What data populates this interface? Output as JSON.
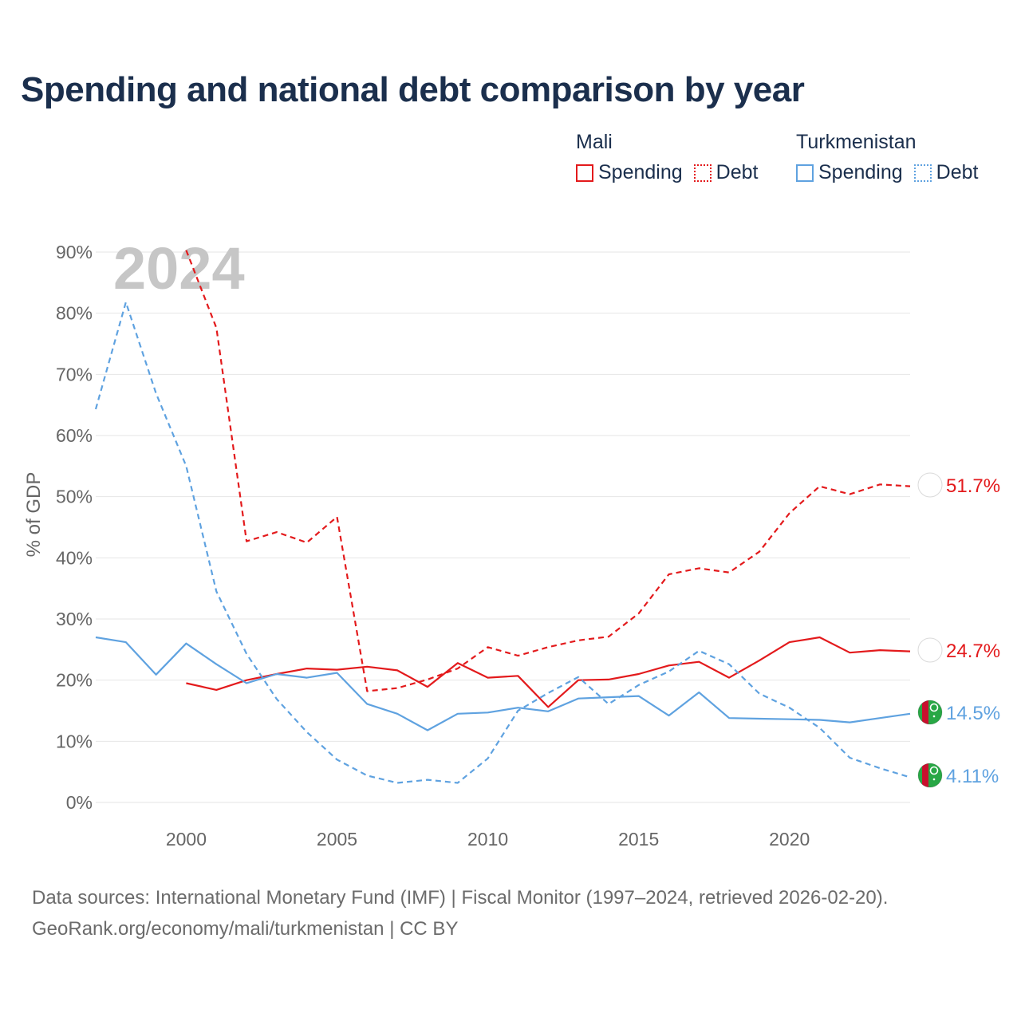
{
  "title": "Spending and national debt comparison by year",
  "legend": {
    "mali": {
      "country": "Mali",
      "spending": "Spending",
      "debt": "Debt"
    },
    "turkmenistan": {
      "country": "Turkmenistan",
      "spending": "Spending",
      "debt": "Debt"
    }
  },
  "colors": {
    "mali": "#e31a1c",
    "turkmenistan": "#5fa2e0",
    "grid": "#e6e6e6",
    "axis_text": "#666666",
    "year_watermark": "#c6c6c6"
  },
  "footer": {
    "line1": "Data sources: International Monetary Fund (IMF) | Fiscal Monitor (1997–2024, retrieved 2026-02-20).",
    "line2": "GeoRank.org/economy/mali/turkmenistan | CC BY"
  },
  "chart_data": {
    "type": "line",
    "year_label": "2024",
    "ylabel": "% of GDP",
    "xlim": [
      1997,
      2024
    ],
    "ylim": [
      0,
      90
    ],
    "x_ticks": [
      2000,
      2005,
      2010,
      2015,
      2020
    ],
    "y_ticks": [
      0,
      10,
      20,
      30,
      40,
      50,
      60,
      70,
      80,
      90
    ],
    "y_tick_labels": [
      "0%",
      "10%",
      "20%",
      "30%",
      "40%",
      "50%",
      "60%",
      "70%",
      "80%",
      "90%"
    ],
    "series": [
      {
        "id": "mali-spending",
        "country": "Mali",
        "measure": "Spending",
        "style": "solid",
        "color": "#e31a1c",
        "end_label": "24.7%",
        "flag": "mali",
        "x": [
          2000,
          2001,
          2002,
          2003,
          2004,
          2005,
          2006,
          2007,
          2008,
          2009,
          2010,
          2011,
          2012,
          2013,
          2014,
          2015,
          2016,
          2017,
          2018,
          2019,
          2020,
          2021,
          2022,
          2023,
          2024
        ],
        "values": [
          19.5,
          18.4,
          20.0,
          21.0,
          21.9,
          21.7,
          22.2,
          21.6,
          18.9,
          22.8,
          20.4,
          20.7,
          15.6,
          20.0,
          20.1,
          21.0,
          22.4,
          23.0,
          20.4,
          23.2,
          26.2,
          27.0,
          24.5,
          24.9,
          24.7
        ]
      },
      {
        "id": "mali-debt",
        "country": "Mali",
        "measure": "Debt",
        "style": "dashed",
        "color": "#e31a1c",
        "end_label": "51.7%",
        "flag": "mali",
        "x": [
          2000,
          2001,
          2002,
          2003,
          2004,
          2005,
          2006,
          2007,
          2008,
          2009,
          2010,
          2011,
          2012,
          2013,
          2014,
          2015,
          2016,
          2017,
          2018,
          2019,
          2020,
          2021,
          2022,
          2023,
          2024
        ],
        "values": [
          90.3,
          77.6,
          42.7,
          44.2,
          42.5,
          46.7,
          18.2,
          18.7,
          20.1,
          21.9,
          25.4,
          24.0,
          25.4,
          26.5,
          27.1,
          30.9,
          37.3,
          38.3,
          37.6,
          41.0,
          47.3,
          51.7,
          50.4,
          52.0,
          51.7
        ]
      },
      {
        "id": "turkmenistan-spending",
        "country": "Turkmenistan",
        "measure": "Spending",
        "style": "solid",
        "color": "#5fa2e0",
        "end_label": "14.5%",
        "flag": "turkmenistan",
        "x": [
          1997,
          1998,
          1999,
          2000,
          2001,
          2002,
          2003,
          2004,
          2005,
          2006,
          2007,
          2008,
          2009,
          2010,
          2011,
          2012,
          2013,
          2014,
          2015,
          2016,
          2017,
          2018,
          2019,
          2020,
          2021,
          2022,
          2023,
          2024
        ],
        "values": [
          27.0,
          26.2,
          20.9,
          26.0,
          22.6,
          19.5,
          21.0,
          20.4,
          21.2,
          16.1,
          14.5,
          11.8,
          14.5,
          14.7,
          15.5,
          14.9,
          17.0,
          17.2,
          17.4,
          14.2,
          18.0,
          13.8,
          13.7,
          13.6,
          13.5,
          13.1,
          13.8,
          14.5
        ]
      },
      {
        "id": "turkmenistan-debt",
        "country": "Turkmenistan",
        "measure": "Debt",
        "style": "dashed",
        "color": "#5fa2e0",
        "end_label": "4.11%",
        "flag": "turkmenistan",
        "x": [
          1997,
          1998,
          1999,
          2000,
          2001,
          2002,
          2003,
          2004,
          2005,
          2006,
          2007,
          2008,
          2009,
          2010,
          2011,
          2012,
          2013,
          2014,
          2015,
          2016,
          2017,
          2018,
          2019,
          2020,
          2021,
          2022,
          2023,
          2024
        ],
        "values": [
          64.3,
          81.8,
          66.9,
          55.0,
          34.5,
          24.3,
          16.9,
          11.5,
          7.0,
          4.4,
          3.2,
          3.7,
          3.2,
          7.2,
          15.0,
          17.9,
          20.5,
          16.1,
          19.2,
          21.4,
          24.8,
          22.6,
          17.8,
          15.5,
          12.2,
          7.3,
          5.6,
          4.11
        ]
      }
    ]
  }
}
